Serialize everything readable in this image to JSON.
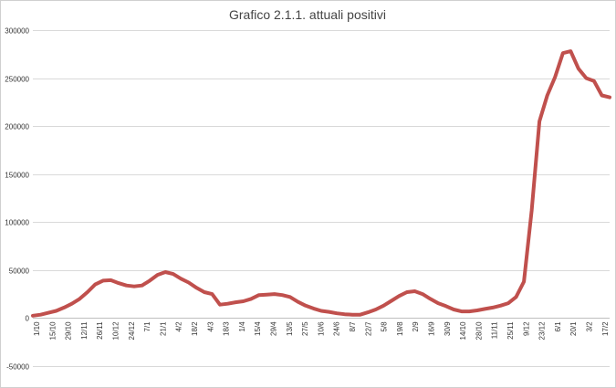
{
  "chart_data": {
    "type": "line",
    "title": "Grafico 2.1.1. attuali positivi",
    "xlabel": "",
    "ylabel": "",
    "ylim": [
      -50000,
      300000
    ],
    "yticks": [
      -50000,
      0,
      50000,
      100000,
      150000,
      200000,
      250000,
      300000
    ],
    "ytick_labels": [
      "-50000",
      "0",
      "50000",
      "100000",
      "150000",
      "200000",
      "250000",
      "300000"
    ],
    "grid": true,
    "legend": "none",
    "x_labels": [
      "1/10",
      "15/10",
      "29/10",
      "12/11",
      "26/11",
      "10/12",
      "24/12",
      "7/1",
      "21/1",
      "4/2",
      "18/2",
      "4/3",
      "18/3",
      "1/4",
      "15/4",
      "29/4",
      "13/5",
      "27/5",
      "10/6",
      "24/6",
      "8/7",
      "22/7",
      "5/8",
      "19/8",
      "2/9",
      "16/9",
      "30/9",
      "14/10",
      "28/10",
      "11/11",
      "25/11",
      "9/12",
      "23/12",
      "6/1",
      "20/1",
      "3/2",
      "17/2"
    ],
    "label_step_days": 14,
    "series_color": "#c0504d",
    "series": [
      {
        "values": [
          2500,
          3500,
          5500,
          7500,
          11000,
          15000,
          20000,
          27000,
          35000,
          39000,
          39500,
          36500,
          34000,
          33000,
          34000,
          39000,
          45000,
          48000,
          46000,
          41000,
          37000,
          31500,
          27000,
          25000,
          14000,
          15000,
          16500,
          17500,
          20000,
          24000,
          24500,
          25000,
          24000,
          22000,
          17000,
          13000,
          10000,
          7500,
          6500,
          5000,
          4000,
          3500,
          3500,
          6000,
          9000,
          13000,
          18000,
          23000,
          27000,
          28000,
          25000,
          20000,
          15500,
          12500,
          9000,
          7000,
          7000,
          8000,
          9500,
          11000,
          13000,
          15500,
          22000,
          38000,
          112000,
          205000,
          232000,
          251000,
          276000,
          278000,
          260000,
          250000,
          247000,
          232000,
          230000
        ]
      }
    ]
  }
}
